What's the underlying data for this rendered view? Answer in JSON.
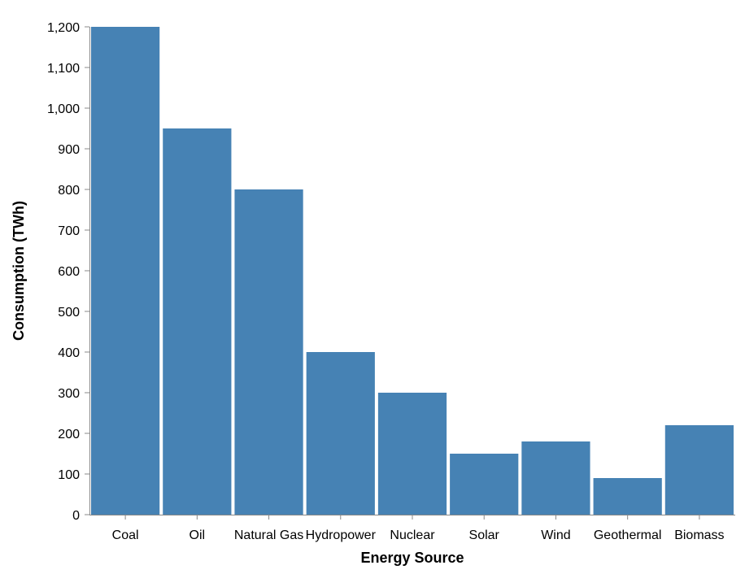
{
  "chart_data": {
    "type": "bar",
    "categories": [
      "Coal",
      "Oil",
      "Natural Gas",
      "Hydropower",
      "Nuclear",
      "Solar",
      "Wind",
      "Geothermal",
      "Biomass"
    ],
    "values": [
      1200,
      950,
      800,
      400,
      300,
      150,
      180,
      90,
      220
    ],
    "xlabel": "Energy Source",
    "ylabel": "Consumption (TWh)",
    "ylim": [
      0,
      1200
    ],
    "yticks": [
      0,
      100,
      200,
      300,
      400,
      500,
      600,
      700,
      800,
      900,
      1000,
      1100,
      1200
    ],
    "bar_color": "#4682b4",
    "grid": false,
    "legend": "none"
  }
}
